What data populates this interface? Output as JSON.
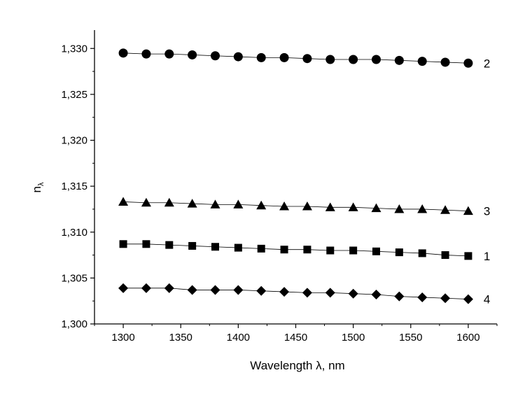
{
  "chart_data": {
    "type": "scatter",
    "xlabel": "Wavelength λ, nm",
    "ylabel_main": "n",
    "ylabel_sub": "λ",
    "xlim": [
      1275,
      1625
    ],
    "ylim": [
      1.3,
      1.332
    ],
    "x_ticks": [
      1300,
      1350,
      1400,
      1450,
      1500,
      1550,
      1600
    ],
    "x_tick_labels": [
      "1300",
      "1350",
      "1400",
      "1450",
      "1500",
      "1550",
      "1600"
    ],
    "y_ticks": [
      1.3,
      1.305,
      1.31,
      1.315,
      1.32,
      1.325,
      1.33
    ],
    "y_tick_labels": [
      "1,300",
      "1,305",
      "1,310",
      "1,315",
      "1,320",
      "1,325",
      "1,330"
    ],
    "grid": false,
    "x": [
      1300,
      1320,
      1340,
      1360,
      1380,
      1400,
      1420,
      1440,
      1460,
      1480,
      1500,
      1520,
      1540,
      1560,
      1580,
      1600
    ],
    "series": [
      {
        "name": "2",
        "marker": "circle",
        "values": [
          1.3295,
          1.3294,
          1.3294,
          1.3293,
          1.3292,
          1.3291,
          1.329,
          1.329,
          1.3289,
          1.3288,
          1.3288,
          1.3288,
          1.3287,
          1.3286,
          1.3285,
          1.3284
        ]
      },
      {
        "name": "3",
        "marker": "triangle",
        "values": [
          1.3133,
          1.3132,
          1.3132,
          1.3131,
          1.313,
          1.313,
          1.3129,
          1.3128,
          1.3128,
          1.3127,
          1.3127,
          1.3126,
          1.3125,
          1.3125,
          1.3124,
          1.3123
        ]
      },
      {
        "name": "1",
        "marker": "square",
        "values": [
          1.3087,
          1.3087,
          1.3086,
          1.3085,
          1.3084,
          1.3083,
          1.3082,
          1.3081,
          1.3081,
          1.308,
          1.308,
          1.3079,
          1.3078,
          1.3077,
          1.3075,
          1.3074
        ]
      },
      {
        "name": "4",
        "marker": "diamond",
        "values": [
          1.3039,
          1.3039,
          1.3039,
          1.3037,
          1.3037,
          1.3037,
          1.3036,
          1.3035,
          1.3034,
          1.3034,
          1.3033,
          1.3032,
          1.303,
          1.3029,
          1.3028,
          1.3027
        ]
      }
    ]
  }
}
